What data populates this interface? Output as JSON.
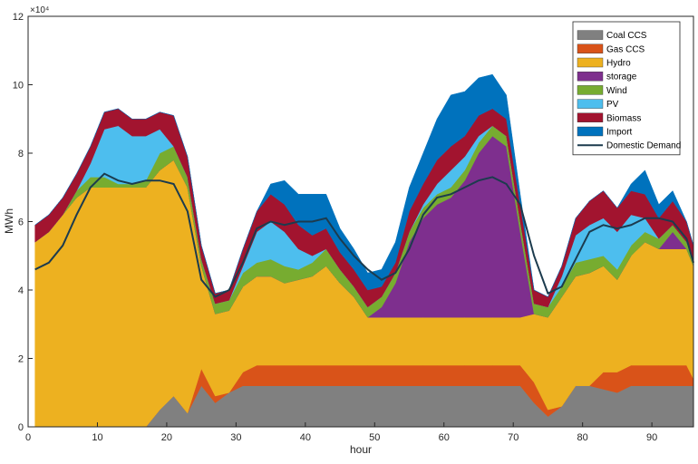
{
  "chart_data": {
    "type": "area",
    "title": "",
    "xlabel": "hour",
    "ylabel": "MWh",
    "y_exponent_label": "×10⁴",
    "y_scale_factor": 10000,
    "xlim": [
      0,
      96
    ],
    "ylim": [
      0,
      120000
    ],
    "x_ticks": [
      0,
      10,
      20,
      30,
      40,
      50,
      60,
      70,
      80,
      90
    ],
    "y_ticks": [
      0,
      2,
      4,
      6,
      8,
      10,
      12
    ],
    "grid": false,
    "legend_position": "top-right",
    "x": [
      1,
      3,
      5,
      7,
      9,
      11,
      13,
      15,
      17,
      19,
      21,
      23,
      25,
      27,
      29,
      31,
      33,
      35,
      37,
      39,
      41,
      43,
      45,
      47,
      49,
      51,
      53,
      55,
      57,
      59,
      61,
      63,
      65,
      67,
      69,
      71,
      73,
      75,
      77,
      79,
      81,
      83,
      85,
      87,
      89,
      91,
      93,
      95,
      96
    ],
    "series": [
      {
        "name": "Coal CCS",
        "color": "#808080",
        "values": [
          0,
          0,
          0,
          0,
          0,
          0,
          0,
          0,
          0,
          5000,
          9000,
          4000,
          12000,
          7000,
          10000,
          12000,
          12000,
          12000,
          12000,
          12000,
          12000,
          12000,
          12000,
          12000,
          12000,
          12000,
          12000,
          12000,
          12000,
          12000,
          12000,
          12000,
          12000,
          12000,
          12000,
          12000,
          7000,
          3000,
          6000,
          12000,
          12000,
          11000,
          10000,
          12000,
          12000,
          12000,
          12000,
          12000,
          12000
        ]
      },
      {
        "name": "Gas CCS",
        "color": "#d95319",
        "values": [
          0,
          0,
          0,
          0,
          0,
          0,
          0,
          0,
          0,
          0,
          0,
          0,
          5000,
          2000,
          0,
          4000,
          6000,
          6000,
          6000,
          6000,
          6000,
          6000,
          6000,
          6000,
          6000,
          6000,
          6000,
          6000,
          6000,
          6000,
          6000,
          6000,
          6000,
          6000,
          6000,
          6000,
          6000,
          2000,
          0,
          0,
          0,
          5000,
          6000,
          6000,
          6000,
          6000,
          6000,
          6000,
          2000
        ]
      },
      {
        "name": "Hydro",
        "color": "#edb120",
        "values": [
          54000,
          57000,
          62000,
          67000,
          70000,
          70000,
          70000,
          70000,
          70000,
          70000,
          69000,
          66000,
          30000,
          24000,
          24000,
          25000,
          26000,
          26000,
          24000,
          25000,
          26000,
          29000,
          24000,
          20000,
          14000,
          14000,
          14000,
          14000,
          14000,
          14000,
          14000,
          14000,
          14000,
          14000,
          14000,
          14000,
          20000,
          27000,
          32000,
          32000,
          33000,
          31000,
          27000,
          32000,
          36000,
          34000,
          34000,
          34000,
          33000
        ]
      },
      {
        "name": "storage",
        "color": "#7e2f8e",
        "values": [
          0,
          0,
          0,
          0,
          0,
          0,
          0,
          0,
          0,
          0,
          0,
          0,
          0,
          0,
          0,
          0,
          0,
          0,
          0,
          0,
          0,
          0,
          0,
          0,
          0,
          3000,
          10000,
          22000,
          29000,
          33000,
          35000,
          40000,
          48000,
          53000,
          50000,
          25000,
          0,
          0,
          0,
          0,
          0,
          0,
          0,
          0,
          0,
          0,
          5000,
          0,
          0
        ]
      },
      {
        "name": "Wind",
        "color": "#77ac30",
        "values": [
          0,
          0,
          0,
          2000,
          3000,
          3000,
          1000,
          1000,
          2000,
          5000,
          4000,
          3000,
          2000,
          3000,
          3000,
          4000,
          4000,
          5000,
          5000,
          3000,
          4000,
          5000,
          4000,
          3000,
          3000,
          3000,
          3000,
          3000,
          3000,
          3000,
          3000,
          3000,
          3000,
          3000,
          3000,
          3000,
          3000,
          3000,
          3000,
          4000,
          4000,
          3000,
          3000,
          3000,
          3000,
          3000,
          2000,
          2000,
          2000
        ]
      },
      {
        "name": "PV",
        "color": "#4dbeee",
        "values": [
          0,
          0,
          0,
          0,
          4000,
          14000,
          17000,
          14000,
          13000,
          7000,
          0,
          0,
          0,
          0,
          0,
          2000,
          9000,
          11000,
          10000,
          6000,
          2000,
          0,
          0,
          0,
          0,
          0,
          0,
          0,
          1000,
          3000,
          5000,
          4000,
          2000,
          0,
          0,
          0,
          0,
          0,
          3000,
          8000,
          10000,
          11000,
          11000,
          9000,
          4000,
          0,
          0,
          0,
          0
        ]
      },
      {
        "name": "Biomass",
        "color": "#a2142f",
        "values": [
          5000,
          5000,
          5000,
          5000,
          5000,
          5000,
          5000,
          5000,
          5000,
          5000,
          9000,
          6000,
          4000,
          3000,
          3000,
          5000,
          6000,
          8000,
          8000,
          7000,
          6000,
          6000,
          5000,
          5000,
          5000,
          3000,
          3000,
          6000,
          6000,
          7000,
          7000,
          6000,
          6000,
          5000,
          5000,
          5000,
          4000,
          3000,
          3000,
          5000,
          7000,
          8000,
          7000,
          7000,
          7000,
          6000,
          7000,
          6000,
          4000
        ]
      },
      {
        "name": "Import",
        "color": "#0072bd",
        "values": [
          0,
          0,
          0,
          0,
          0,
          0,
          0,
          0,
          0,
          0,
          0,
          0,
          0,
          0,
          0,
          0,
          0,
          3000,
          7000,
          9000,
          12000,
          10000,
          7000,
          6000,
          5000,
          5000,
          6000,
          7000,
          9000,
          12000,
          15000,
          13000,
          11000,
          10000,
          7000,
          3000,
          0,
          0,
          0,
          0,
          0,
          0,
          0,
          2000,
          7000,
          4000,
          3000,
          0,
          0
        ]
      }
    ],
    "lines": [
      {
        "name": "Domestic Demand",
        "color": "#1c3b4e",
        "values": [
          46000,
          48000,
          53000,
          62000,
          70000,
          74000,
          72000,
          71000,
          72000,
          72000,
          71000,
          63000,
          43000,
          38000,
          40000,
          48000,
          58000,
          60000,
          59000,
          60000,
          60000,
          61000,
          55000,
          50000,
          46000,
          43000,
          45000,
          52000,
          62000,
          67000,
          68000,
          70000,
          72000,
          73000,
          71000,
          65000,
          50000,
          39000,
          41000,
          49000,
          57000,
          59000,
          58000,
          59000,
          61000,
          61000,
          60000,
          55000,
          48000
        ]
      }
    ]
  }
}
